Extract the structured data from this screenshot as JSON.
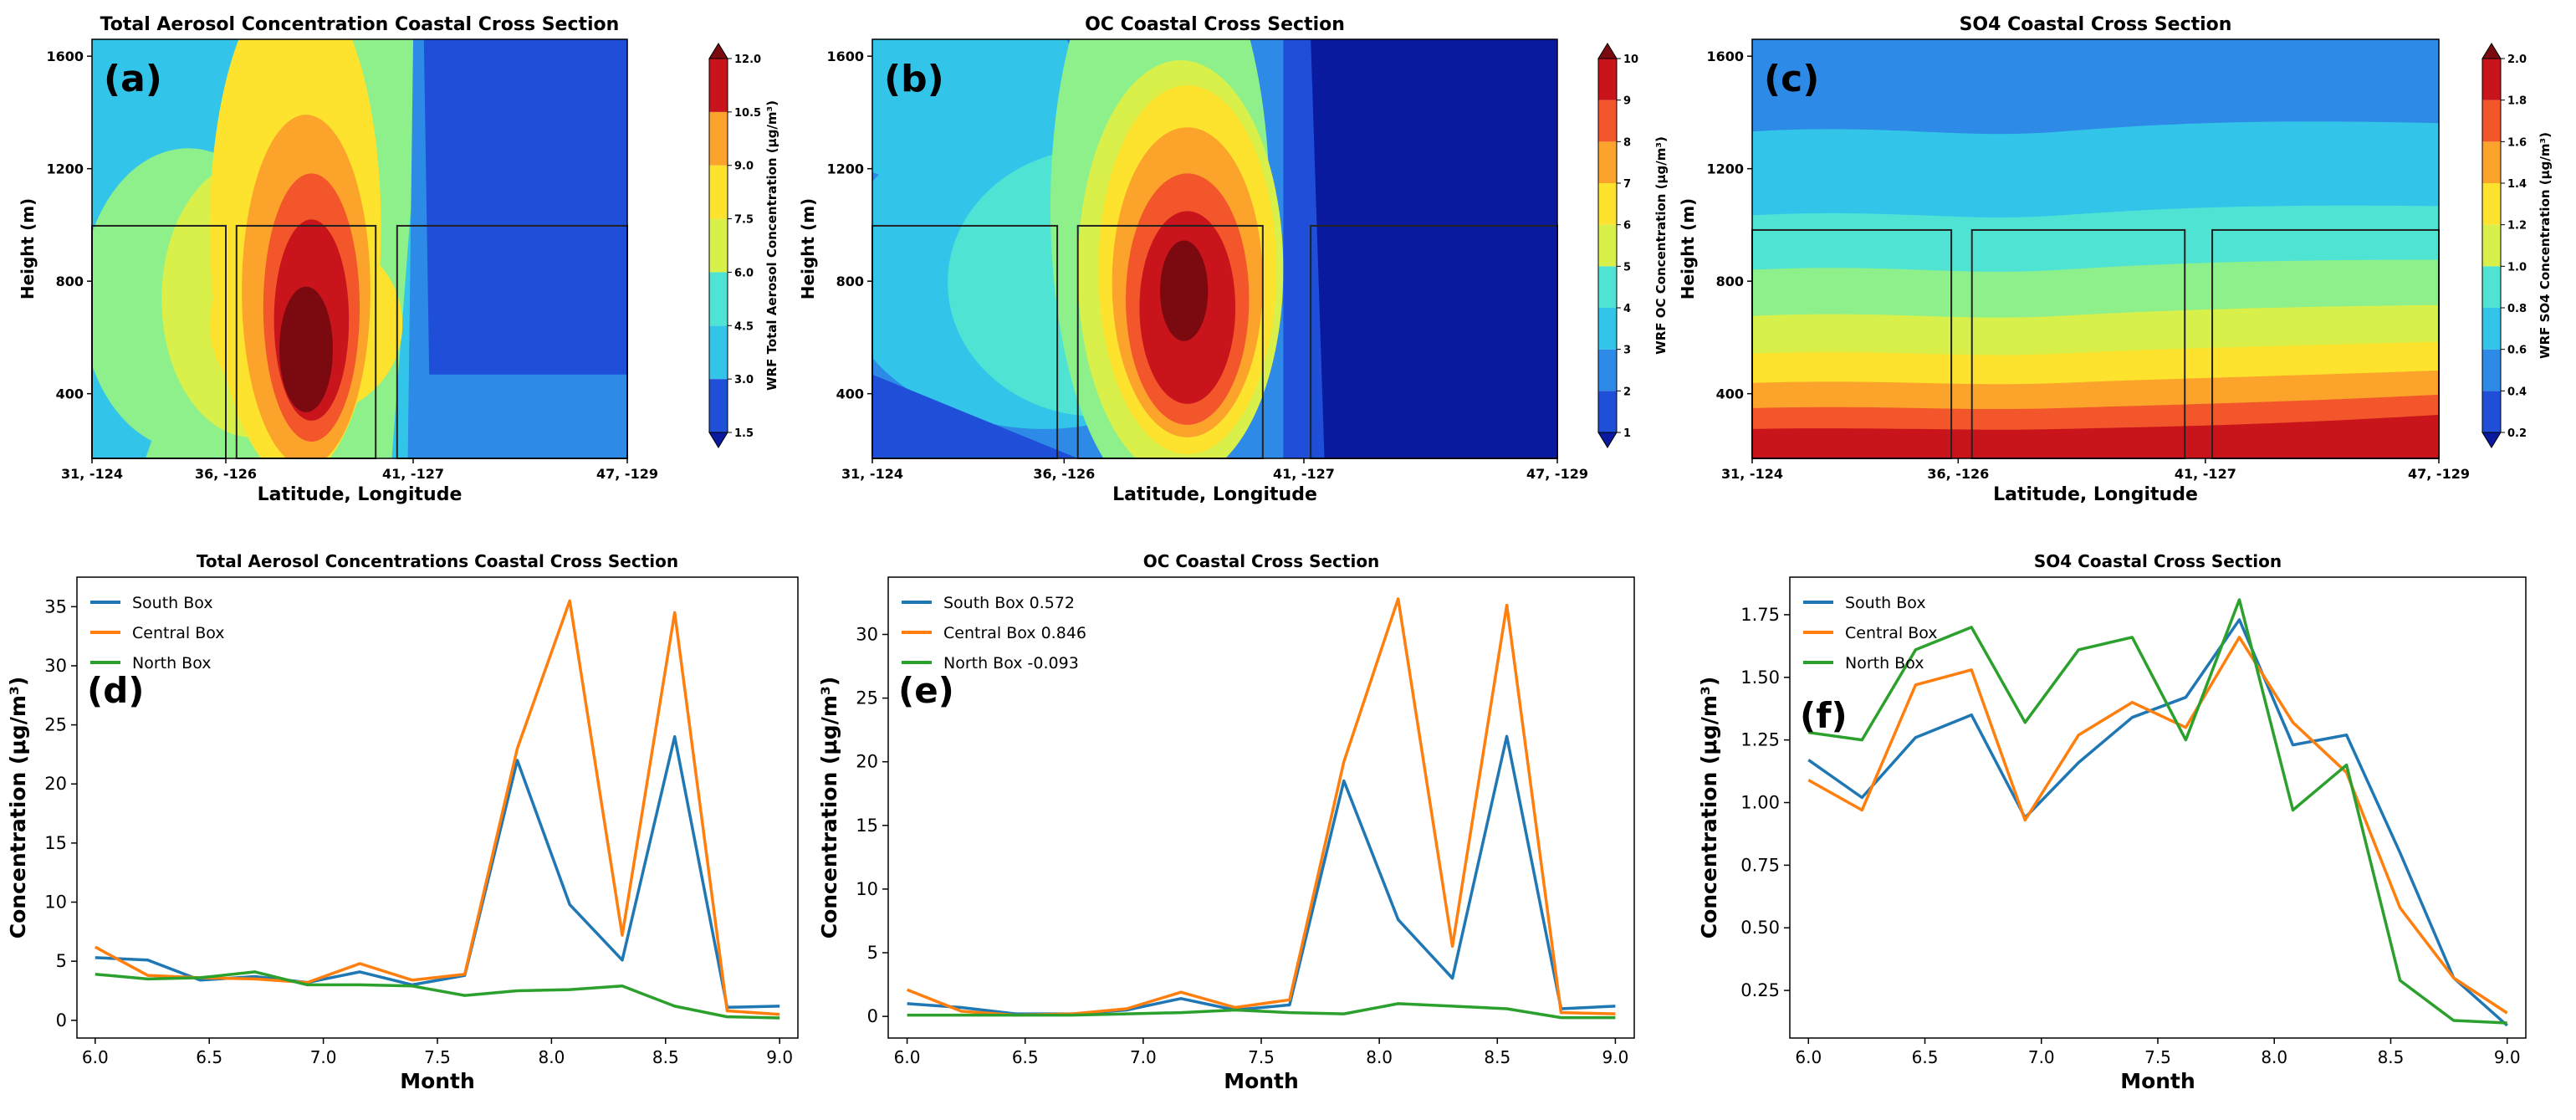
{
  "contours": [
    {
      "panel_label": "(a)",
      "title": "Total Aerosol Concentration Coastal Cross Section",
      "xlabel": "Latitude, Longitude",
      "ylabel": "Height (m)",
      "x_ticks": [
        "31, -124",
        "36, -126",
        "41, -127",
        "47, -129"
      ],
      "y_ticks": [
        "400",
        "800",
        "1200",
        "1600"
      ],
      "colorbar_label": "WRF Total Aerosol Concentration (μg/m³)",
      "colorbar_ticks": [
        "1.5",
        "3.0",
        "4.5",
        "6.0",
        "7.5",
        "9.0",
        "10.5",
        "12.0"
      ],
      "colorbar_range": [
        1.5,
        12.0
      ],
      "box_top_m": 1000
    },
    {
      "panel_label": "(b)",
      "title": "OC Coastal Cross Section",
      "xlabel": "Latitude, Longitude",
      "ylabel": "Height (m)",
      "x_ticks": [
        "31, -124",
        "36, -126",
        "41, -127",
        "47, -129"
      ],
      "y_ticks": [
        "400",
        "800",
        "1200",
        "1600"
      ],
      "colorbar_label": "WRF OC Concentration (μg/m³)",
      "colorbar_ticks": [
        "1",
        "2",
        "3",
        "4",
        "5",
        "6",
        "7",
        "8",
        "9",
        "10"
      ],
      "colorbar_range": [
        1,
        10
      ],
      "box_top_m": 1000
    },
    {
      "panel_label": "(c)",
      "title": "SO4 Coastal Cross Section",
      "xlabel": "Latitude, Longitude",
      "ylabel": "Height (m)",
      "x_ticks": [
        "31, -124",
        "36, -126",
        "41, -127",
        "47, -129"
      ],
      "y_ticks": [
        "400",
        "800",
        "1200",
        "1600"
      ],
      "colorbar_label": "WRF SO4 Concentration (μg/m³)",
      "colorbar_ticks": [
        "0.2",
        "0.4",
        "0.6",
        "0.8",
        "1.0",
        "1.2",
        "1.4",
        "1.6",
        "1.8",
        "2.0"
      ],
      "colorbar_range": [
        0.2,
        2.0
      ],
      "box_top_m": 1000
    }
  ],
  "colors": {
    "south": "#1f77b4",
    "central": "#ff7f0e",
    "north": "#2ca02c",
    "jet": [
      "#0a1a9e",
      "#1f4fd8",
      "#2d8ae6",
      "#33c4ea",
      "#4fe3d4",
      "#8ef08a",
      "#d9f04a",
      "#fde22e",
      "#fba32a",
      "#f2562a",
      "#c9141c",
      "#7a0a10"
    ]
  },
  "chart_data": [
    {
      "type": "line",
      "panel_label": "(d)",
      "title": "Total Aerosol Concentrations Coastal Cross Section",
      "xlabel": "Month",
      "ylabel": "Concentration (μg/m³)",
      "x": [
        6.0,
        6.23,
        6.46,
        6.7,
        6.93,
        7.16,
        7.39,
        7.62,
        7.85,
        8.08,
        8.31,
        8.54,
        8.77,
        9.0
      ],
      "xlim": [
        5.92,
        9.08
      ],
      "ylim": [
        -1.5,
        37.5
      ],
      "xticks": [
        "6.0",
        "6.5",
        "7.0",
        "7.5",
        "8.0",
        "8.5",
        "9.0"
      ],
      "yticks": [
        "0",
        "5",
        "10",
        "15",
        "20",
        "25",
        "30",
        "35"
      ],
      "legend_position": "upper-left",
      "series": [
        {
          "name": "South Box",
          "values": [
            5.3,
            5.1,
            3.4,
            3.7,
            3.2,
            4.1,
            3.0,
            3.8,
            22.0,
            9.8,
            5.1,
            24.0,
            1.1,
            1.2
          ]
        },
        {
          "name": "Central Box",
          "values": [
            6.2,
            3.8,
            3.6,
            3.5,
            3.2,
            4.8,
            3.4,
            3.9,
            23.0,
            35.5,
            7.2,
            34.5,
            0.8,
            0.5
          ]
        },
        {
          "name": "North Box",
          "values": [
            3.9,
            3.5,
            3.6,
            4.1,
            3.0,
            3.0,
            2.9,
            2.1,
            2.5,
            2.6,
            2.9,
            1.2,
            0.3,
            0.2
          ]
        }
      ]
    },
    {
      "type": "line",
      "panel_label": "(e)",
      "title": "OC Coastal Cross Section",
      "xlabel": "Month",
      "ylabel": "Concentration (μg/m³)",
      "x": [
        6.0,
        6.23,
        6.46,
        6.7,
        6.93,
        7.16,
        7.39,
        7.62,
        7.85,
        8.08,
        8.31,
        8.54,
        8.77,
        9.0
      ],
      "xlim": [
        5.92,
        9.08
      ],
      "ylim": [
        -1.7,
        34.5
      ],
      "xticks": [
        "6.0",
        "6.5",
        "7.0",
        "7.5",
        "8.0",
        "8.5",
        "9.0"
      ],
      "yticks": [
        "0",
        "5",
        "10",
        "15",
        "20",
        "25",
        "30"
      ],
      "legend_position": "upper-left",
      "series": [
        {
          "name": "South Box 0.572",
          "values": [
            1.0,
            0.7,
            0.2,
            0.2,
            0.5,
            1.4,
            0.5,
            0.9,
            18.5,
            7.6,
            3.0,
            22.0,
            0.6,
            0.8
          ]
        },
        {
          "name": "Central Box 0.846",
          "values": [
            2.1,
            0.4,
            0.1,
            0.2,
            0.6,
            1.9,
            0.7,
            1.3,
            20.0,
            32.8,
            5.5,
            32.3,
            0.3,
            0.2
          ]
        },
        {
          "name": "North Box -0.093",
          "values": [
            0.1,
            0.1,
            0.1,
            0.1,
            0.2,
            0.3,
            0.5,
            0.3,
            0.2,
            1.0,
            0.8,
            0.6,
            -0.1,
            -0.1
          ]
        }
      ]
    },
    {
      "type": "line",
      "panel_label": "(f)",
      "title": "SO4 Coastal Cross Section",
      "xlabel": "Month",
      "ylabel": "Concentration (μg/m³)",
      "x": [
        6.0,
        6.23,
        6.46,
        6.7,
        6.93,
        7.16,
        7.39,
        7.62,
        7.85,
        8.08,
        8.31,
        8.54,
        8.77,
        9.0
      ],
      "xlim": [
        5.92,
        9.08
      ],
      "ylim": [
        0.06,
        1.9
      ],
      "xticks": [
        "6.0",
        "6.5",
        "7.0",
        "7.5",
        "8.0",
        "8.5",
        "9.0"
      ],
      "yticks": [
        "0.25",
        "0.50",
        "0.75",
        "1.00",
        "1.25",
        "1.50",
        "1.75"
      ],
      "legend_position": "upper-left",
      "series": [
        {
          "name": "South Box",
          "values": [
            1.17,
            1.02,
            1.26,
            1.35,
            0.94,
            1.16,
            1.34,
            1.42,
            1.73,
            1.23,
            1.27,
            0.8,
            0.3,
            0.11
          ]
        },
        {
          "name": "Central Box",
          "values": [
            1.09,
            0.97,
            1.47,
            1.53,
            0.93,
            1.27,
            1.4,
            1.3,
            1.66,
            1.32,
            1.12,
            0.58,
            0.3,
            0.16
          ]
        },
        {
          "name": "North Box",
          "values": [
            1.28,
            1.25,
            1.61,
            1.7,
            1.32,
            1.61,
            1.66,
            1.25,
            1.81,
            0.97,
            1.15,
            0.29,
            0.13,
            0.12
          ]
        }
      ]
    }
  ]
}
